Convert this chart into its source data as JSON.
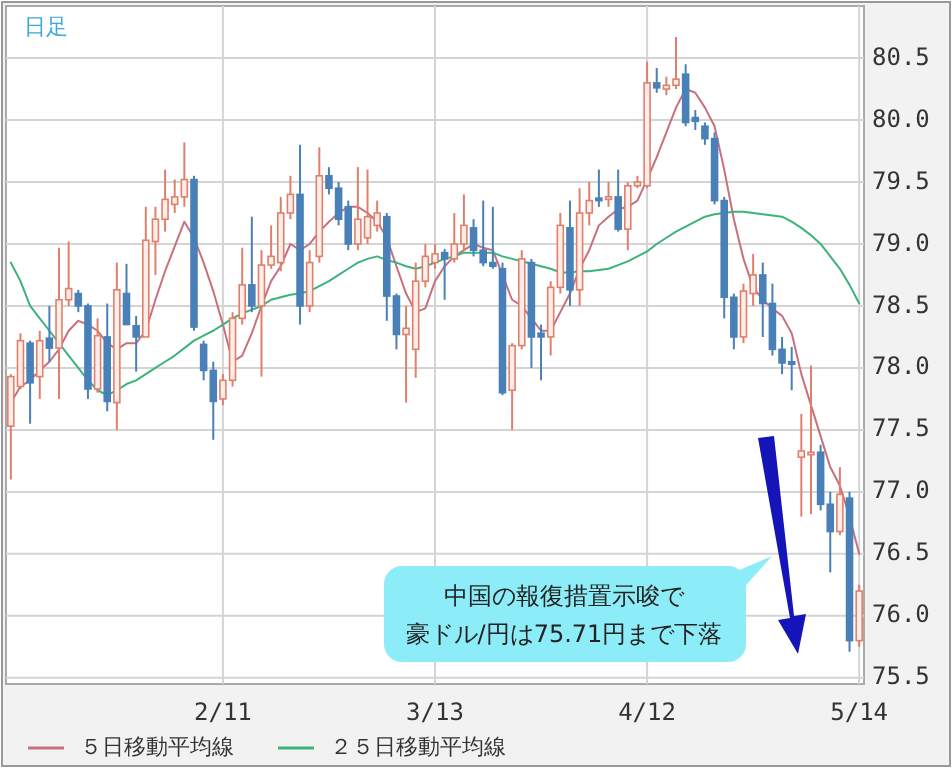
{
  "chart_data": {
    "type": "candlestick",
    "title": "日足",
    "categories": [
      null,
      null,
      null,
      null,
      null,
      null,
      null,
      null,
      null,
      null,
      null,
      null,
      null,
      null,
      null,
      null,
      null,
      null,
      null,
      null,
      null,
      null,
      "2/11",
      null,
      null,
      null,
      null,
      null,
      null,
      null,
      null,
      null,
      null,
      null,
      null,
      null,
      null,
      null,
      null,
      null,
      null,
      null,
      null,
      null,
      "3/13",
      null,
      null,
      null,
      null,
      null,
      null,
      null,
      null,
      null,
      null,
      null,
      null,
      null,
      null,
      null,
      null,
      null,
      null,
      null,
      null,
      null,
      "4/12",
      null,
      null,
      null,
      null,
      null,
      null,
      null,
      null,
      null,
      null,
      null,
      null,
      null,
      null,
      null,
      null,
      null,
      null,
      null,
      null,
      null,
      "5/14"
    ],
    "ohlc": [
      [
        77.53,
        77.95,
        77.1,
        77.93
      ],
      [
        77.85,
        78.28,
        77.83,
        78.22
      ],
      [
        78.2,
        78.22,
        77.55,
        77.88
      ],
      [
        77.93,
        78.3,
        77.75,
        78.22
      ],
      [
        78.24,
        78.5,
        78.05,
        78.16
      ],
      [
        78.16,
        78.97,
        77.75,
        78.55
      ],
      [
        78.55,
        79.02,
        78.5,
        78.64
      ],
      [
        78.6,
        78.63,
        78.45,
        78.5
      ],
      [
        78.5,
        78.52,
        77.75,
        77.83
      ],
      [
        77.83,
        78.4,
        77.8,
        78.26
      ],
      [
        78.25,
        78.52,
        77.65,
        77.73
      ],
      [
        77.72,
        78.85,
        77.5,
        78.63
      ],
      [
        78.6,
        78.84,
        78.35,
        78.35
      ],
      [
        78.34,
        78.42,
        77.97,
        78.25
      ],
      [
        78.25,
        79.3,
        78.25,
        79.03
      ],
      [
        79.02,
        79.3,
        78.75,
        79.2
      ],
      [
        79.2,
        79.6,
        79.1,
        79.36
      ],
      [
        79.32,
        79.52,
        79.25,
        79.38
      ],
      [
        79.38,
        79.82,
        79.3,
        79.52
      ],
      [
        79.52,
        79.55,
        78.3,
        78.33
      ],
      [
        78.19,
        78.22,
        77.9,
        77.98
      ],
      [
        77.98,
        78.05,
        77.42,
        77.73
      ],
      [
        77.75,
        77.95,
        77.7,
        77.9
      ],
      [
        77.9,
        78.45,
        77.85,
        78.4
      ],
      [
        78.4,
        78.97,
        78.35,
        78.67
      ],
      [
        78.67,
        79.22,
        78.45,
        78.5
      ],
      [
        78.5,
        78.95,
        77.93,
        78.83
      ],
      [
        78.83,
        79.15,
        78.8,
        78.9
      ],
      [
        78.85,
        79.38,
        78.78,
        79.25
      ],
      [
        79.25,
        79.55,
        79.2,
        79.4
      ],
      [
        79.4,
        79.8,
        78.35,
        78.5
      ],
      [
        78.5,
        78.95,
        78.45,
        78.85
      ],
      [
        78.9,
        79.78,
        78.85,
        79.55
      ],
      [
        79.55,
        79.62,
        79.4,
        79.45
      ],
      [
        79.45,
        79.5,
        79.15,
        79.2
      ],
      [
        79.3,
        79.35,
        78.95,
        79.0
      ],
      [
        79.0,
        79.62,
        78.95,
        79.2
      ],
      [
        79.05,
        79.6,
        79.0,
        79.22
      ],
      [
        79.15,
        79.35,
        79.1,
        79.25
      ],
      [
        79.22,
        79.25,
        78.38,
        78.58
      ],
      [
        78.58,
        78.6,
        78.15,
        78.27
      ],
      [
        78.27,
        78.5,
        77.72,
        78.32
      ],
      [
        78.15,
        78.85,
        77.92,
        78.7
      ],
      [
        78.7,
        79.0,
        78.65,
        78.9
      ],
      [
        78.85,
        79.0,
        78.8,
        78.92
      ],
      [
        78.93,
        78.96,
        78.55,
        78.88
      ],
      [
        78.88,
        79.25,
        78.85,
        79.0
      ],
      [
        79.0,
        79.4,
        78.95,
        79.15
      ],
      [
        79.13,
        79.2,
        78.9,
        78.95
      ],
      [
        78.95,
        79.35,
        78.82,
        78.85
      ],
      [
        78.85,
        79.3,
        78.8,
        78.82
      ],
      [
        78.8,
        78.85,
        77.78,
        77.8
      ],
      [
        77.82,
        78.2,
        77.5,
        78.18
      ],
      [
        78.18,
        78.95,
        78.15,
        78.88
      ],
      [
        78.85,
        78.88,
        78.0,
        78.25
      ],
      [
        78.28,
        78.35,
        77.9,
        78.25
      ],
      [
        78.25,
        78.7,
        78.1,
        78.65
      ],
      [
        78.65,
        79.25,
        78.6,
        79.15
      ],
      [
        79.13,
        79.35,
        78.5,
        78.63
      ],
      [
        78.63,
        79.45,
        78.5,
        79.25
      ],
      [
        79.25,
        79.5,
        79.15,
        79.35
      ],
      [
        79.37,
        79.6,
        79.3,
        79.35
      ],
      [
        79.36,
        79.5,
        79.3,
        79.38
      ],
      [
        79.38,
        79.6,
        79.1,
        79.12
      ],
      [
        79.12,
        79.5,
        78.95,
        79.47
      ],
      [
        79.47,
        79.55,
        79.45,
        79.5
      ],
      [
        79.47,
        80.47,
        79.45,
        80.3
      ],
      [
        80.3,
        80.42,
        80.22,
        80.26
      ],
      [
        80.25,
        80.35,
        80.2,
        80.28
      ],
      [
        80.28,
        80.67,
        80.25,
        80.33
      ],
      [
        80.37,
        80.45,
        79.95,
        79.98
      ],
      [
        80.02,
        80.08,
        79.92,
        79.99
      ],
      [
        79.95,
        79.98,
        79.8,
        79.85
      ],
      [
        79.85,
        79.9,
        79.32,
        79.35
      ],
      [
        79.35,
        79.38,
        78.4,
        78.57
      ],
      [
        78.57,
        78.6,
        78.15,
        78.25
      ],
      [
        78.25,
        78.68,
        78.2,
        78.62
      ],
      [
        78.6,
        78.92,
        78.5,
        78.75
      ],
      [
        78.75,
        78.85,
        78.25,
        78.52
      ],
      [
        78.52,
        78.68,
        78.1,
        78.15
      ],
      [
        78.15,
        78.25,
        77.95,
        78.04
      ],
      [
        78.05,
        78.17,
        77.82,
        78.03
      ],
      [
        77.28,
        77.63,
        76.8,
        77.33
      ],
      [
        77.3,
        78.02,
        76.82,
        77.32
      ],
      [
        77.32,
        77.38,
        76.85,
        76.9
      ],
      [
        76.9,
        77.0,
        76.35,
        76.68
      ],
      [
        76.68,
        77.2,
        76.65,
        76.98
      ],
      [
        76.95,
        77.0,
        75.71,
        75.8
      ],
      [
        75.8,
        76.25,
        75.75,
        76.2
      ]
    ],
    "colors": [
      "#e0806c",
      "#e0806c",
      "#4a80b8",
      "#e0806c",
      "#4a80b8",
      "#e0806c",
      "#e0806c",
      "#4a80b8",
      "#4a80b8",
      "#e0806c",
      "#4a80b8",
      "#e0806c",
      "#4a80b8",
      "#4a80b8",
      "#e0806c",
      "#e0806c",
      "#e0806c",
      "#e0806c",
      "#e0806c",
      "#4a80b8",
      "#4a80b8",
      "#4a80b8",
      "#e0806c",
      "#e0806c",
      "#e0806c",
      "#4a80b8",
      "#e0806c",
      "#e0806c",
      "#e0806c",
      "#e0806c",
      "#4a80b8",
      "#e0806c",
      "#e0806c",
      "#4a80b8",
      "#4a80b8",
      "#4a80b8",
      "#e0806c",
      "#e0806c",
      "#e0806c",
      "#4a80b8",
      "#4a80b8",
      "#e0806c",
      "#e0806c",
      "#e0806c",
      "#e0806c",
      "#4a80b8",
      "#e0806c",
      "#e0806c",
      "#4a80b8",
      "#4a80b8",
      "#4a80b8",
      "#4a80b8",
      "#e0806c",
      "#e0806c",
      "#4a80b8",
      "#4a80b8",
      "#e0806c",
      "#e0806c",
      "#4a80b8",
      "#e0806c",
      "#e0806c",
      "#4a80b8",
      "#e0806c",
      "#4a80b8",
      "#e0806c",
      "#e0806c",
      "#e0806c",
      "#4a80b8",
      "#e0806c",
      "#e0806c",
      "#4a80b8",
      "#4a80b8",
      "#4a80b8",
      "#4a80b8",
      "#4a80b8",
      "#4a80b8",
      "#e0806c",
      "#e0806c",
      "#4a80b8",
      "#4a80b8",
      "#4a80b8",
      "#4a80b8",
      "#e0806c",
      "#e0806c",
      "#4a80b8",
      "#4a80b8",
      "#e0806c",
      "#4a80b8",
      "#e0806c"
    ],
    "series": [
      {
        "type": "line",
        "name": "５日移動平均線",
        "color": "#c8707e",
        "values": [
          77.72,
          77.85,
          77.9,
          77.98,
          78.05,
          78.15,
          78.3,
          78.38,
          78.35,
          78.3,
          78.2,
          78.15,
          78.2,
          78.2,
          78.3,
          78.55,
          78.78,
          78.98,
          79.18,
          79.05,
          78.85,
          78.62,
          78.35,
          78.05,
          78.1,
          78.28,
          78.5,
          78.7,
          78.82,
          79.0,
          78.95,
          79.0,
          79.1,
          79.18,
          79.25,
          79.3,
          79.3,
          79.25,
          79.18,
          79.05,
          78.82,
          78.6,
          78.45,
          78.48,
          78.7,
          78.82,
          78.9,
          78.95,
          79.0,
          78.97,
          78.95,
          78.75,
          78.55,
          78.5,
          78.4,
          78.3,
          78.3,
          78.45,
          78.6,
          78.8,
          78.95,
          79.15,
          79.22,
          79.28,
          79.3,
          79.35,
          79.52,
          79.7,
          79.9,
          80.1,
          80.25,
          80.22,
          80.1,
          79.95,
          79.6,
          79.2,
          78.88,
          78.65,
          78.55,
          78.48,
          78.42,
          78.28,
          77.95,
          77.7,
          77.45,
          77.2,
          77.05,
          76.8,
          76.5
        ]
      },
      {
        "type": "line",
        "name": "２５日移動平均線",
        "color": "#3cb37a",
        "values": [
          78.85,
          78.7,
          78.5,
          78.4,
          78.3,
          78.2,
          78.1,
          78.0,
          77.9,
          77.82,
          77.78,
          77.82,
          77.87,
          77.9,
          77.95,
          78.0,
          78.05,
          78.1,
          78.16,
          78.22,
          78.26,
          78.3,
          78.35,
          78.4,
          78.44,
          78.47,
          78.5,
          78.55,
          78.57,
          78.59,
          78.6,
          78.62,
          78.66,
          78.7,
          78.75,
          78.8,
          78.85,
          78.88,
          78.9,
          78.87,
          78.85,
          78.82,
          78.8,
          78.82,
          78.85,
          78.88,
          78.9,
          78.93,
          78.93,
          78.93,
          78.93,
          78.9,
          78.88,
          78.86,
          78.84,
          78.82,
          78.8,
          78.77,
          78.77,
          78.78,
          78.78,
          78.79,
          78.8,
          78.83,
          78.86,
          78.9,
          78.94,
          79.0,
          79.05,
          79.1,
          79.14,
          79.18,
          79.22,
          79.24,
          79.25,
          79.26,
          79.26,
          79.25,
          79.24,
          79.23,
          79.22,
          79.18,
          79.13,
          79.07,
          79.0,
          78.9,
          78.8,
          78.67,
          78.52
        ]
      }
    ],
    "ylim": [
      75.45,
      80.92
    ],
    "yticks": [
      {
        "value": 75.5,
        "label": "75.5"
      },
      {
        "value": 76,
        "label": "76.0"
      },
      {
        "value": 76.5,
        "label": "76.5"
      },
      {
        "value": 77,
        "label": "77.0"
      },
      {
        "value": 77.5,
        "label": "77.5"
      },
      {
        "value": 78,
        "label": "78.0"
      },
      {
        "value": 78.5,
        "label": "78.5"
      },
      {
        "value": 79,
        "label": "79.0"
      },
      {
        "value": 79.5,
        "label": "79.5"
      },
      {
        "value": 80,
        "label": "80.0"
      },
      {
        "value": 80.5,
        "label": "80.5"
      }
    ],
    "grid": true,
    "legend": "bottom",
    "annotations": [
      "中国の報復措置示唆で",
      "豪ドル/円は75.71円まで下落"
    ]
  }
}
